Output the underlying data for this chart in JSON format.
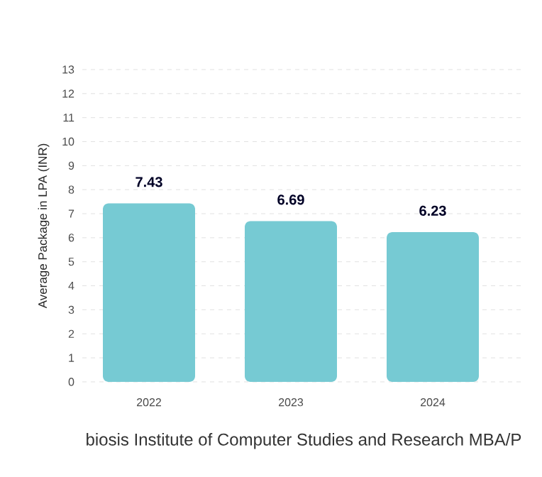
{
  "chart_data": {
    "type": "bar",
    "xlabel": "biosis Institute of Computer Studies and Research MBA/P",
    "ylabel": "Average Package in LPA (INR)",
    "categories": [
      "2022",
      "2023",
      "2024"
    ],
    "values": [
      7.43,
      6.69,
      6.23
    ],
    "color": "#76cad3",
    "ylim": [
      0,
      13
    ],
    "yticks": [
      0,
      1,
      2,
      3,
      4,
      5,
      6,
      7,
      8,
      9,
      10,
      11,
      12,
      13
    ],
    "grid": "y",
    "data_labels": true
  }
}
